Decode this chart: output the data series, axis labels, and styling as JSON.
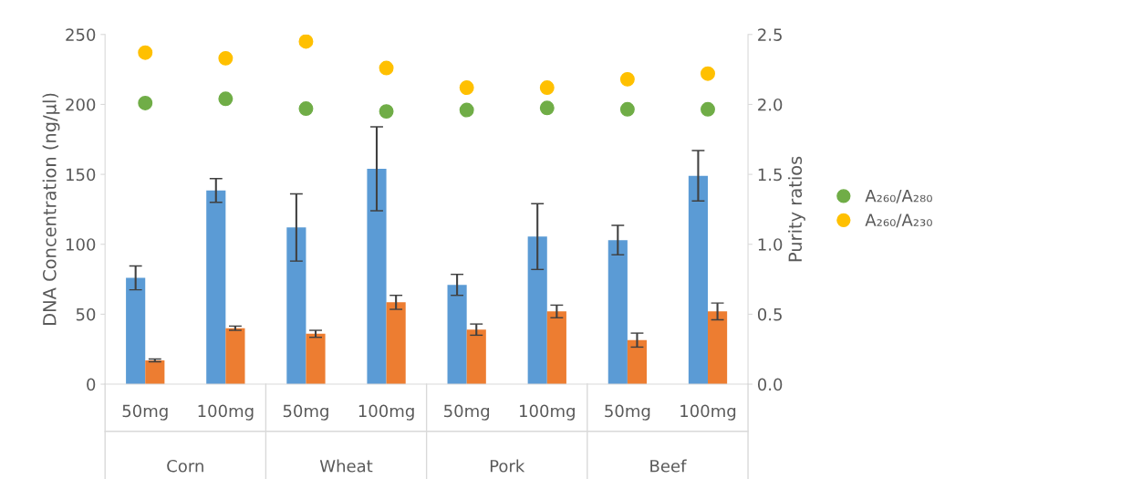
{
  "chart_data": {
    "type": "bar",
    "categories": [
      "50mg",
      "100mg",
      "50mg",
      "100mg",
      "50mg",
      "100mg",
      "50mg",
      "100mg"
    ],
    "annotations": [
      "Corn",
      "Wheat",
      "Pork",
      "Beef"
    ],
    "ylabel": "DNA Concentration (ng/µl)",
    "y2label": "Purity ratios",
    "ylim": [
      0,
      250
    ],
    "yticks": [
      0,
      50,
      100,
      150,
      200,
      250
    ],
    "y2lim": [
      0,
      2.5
    ],
    "y2ticks": [
      {
        "value": 0,
        "label": "0.0"
      },
      {
        "value": 0.5,
        "label": "0.5"
      },
      {
        "value": 1,
        "label": "1.0"
      },
      {
        "value": 1.5,
        "label": "1.5"
      },
      {
        "value": 2,
        "label": "2.0"
      },
      {
        "value": 2.5,
        "label": "2.5"
      }
    ],
    "grid": false,
    "legend": "right",
    "marker": "circle",
    "series": [
      {
        "color": "#5b9bd5",
        "values": [
          76,
          138.5,
          112,
          154,
          71,
          105.5,
          103,
          149
        ],
        "errors": [
          8.5,
          8.5,
          24,
          30,
          7.5,
          23.5,
          10.5,
          18
        ]
      },
      {
        "color": "#ed7d31",
        "values": [
          17,
          40,
          36,
          58.5,
          39,
          52,
          31.5,
          52
        ],
        "errors": [
          1,
          1.5,
          2.5,
          5,
          4,
          4.5,
          5,
          6
        ]
      },
      {
        "type": "scatter",
        "axis": "y2",
        "name": "A₂₆₀/A₂₈₀",
        "color": "#70ad47",
        "values": [
          2.01,
          2.04,
          1.97,
          1.95,
          1.96,
          1.975,
          1.965,
          1.965
        ]
      },
      {
        "type": "scatter",
        "axis": "y2",
        "name": "A₂₆₀/A₂₃₀",
        "color": "#ffc000",
        "values": [
          2.37,
          2.33,
          2.45,
          2.26,
          2.12,
          2.12,
          2.18,
          2.22
        ]
      }
    ]
  }
}
